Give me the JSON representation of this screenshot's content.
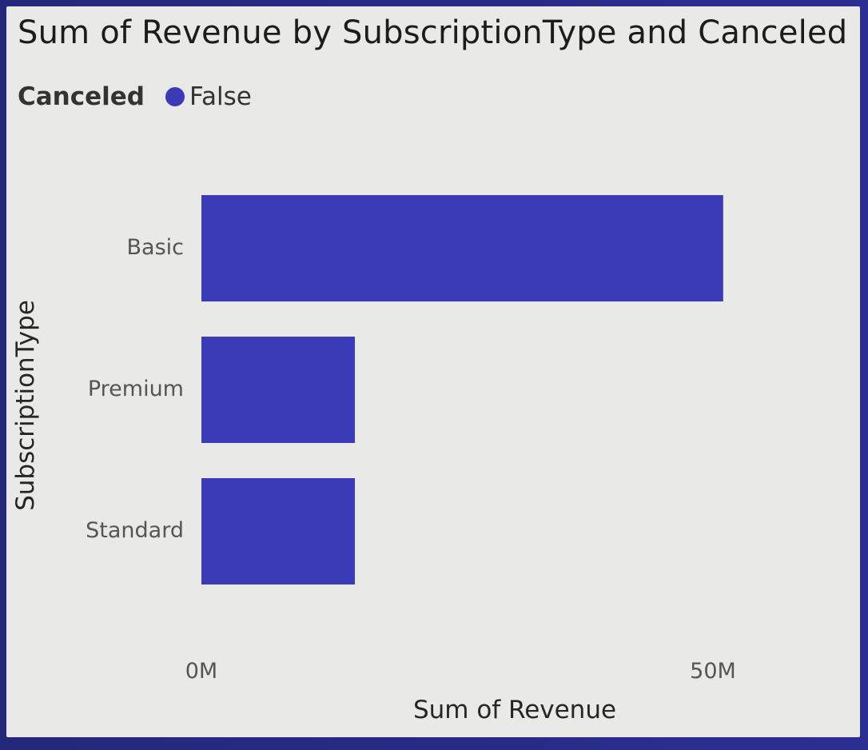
{
  "chart_data": {
    "type": "bar",
    "orientation": "horizontal",
    "title": "Sum of Revenue by SubscriptionType and Canceled",
    "legend": {
      "title": "Canceled",
      "position": "top-left",
      "entries": [
        {
          "name": "False",
          "color": "#3b3bb8"
        }
      ]
    },
    "categories": [
      "Basic",
      "Premium",
      "Standard"
    ],
    "series": [
      {
        "name": "False",
        "color": "#3b3bb8",
        "values": [
          51,
          15,
          15
        ]
      }
    ],
    "xlabel": "Sum of Revenue",
    "ylabel": "SubscriptionType",
    "xlim": [
      0,
      50
    ],
    "xticks": [
      {
        "value": 0,
        "label": "0M"
      },
      {
        "value": 50,
        "label": "50M"
      }
    ],
    "units": "M",
    "grid": false
  }
}
